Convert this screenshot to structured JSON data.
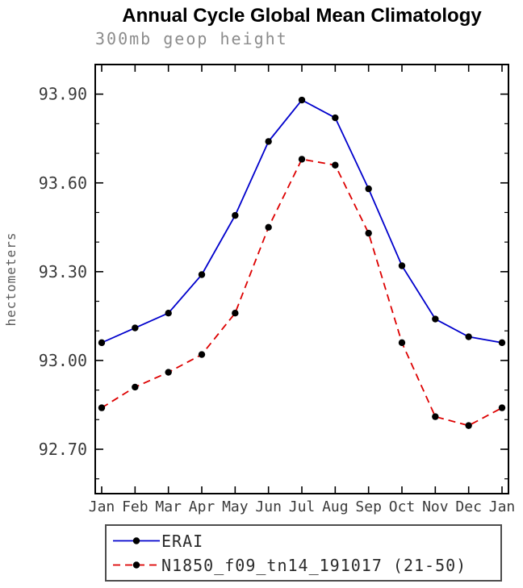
{
  "chart_data": {
    "type": "line",
    "title": "Annual Cycle Global Mean Climatology",
    "subtitle": "300mb geop height",
    "ylabel": "hectometers",
    "xlabel": "",
    "grid": false,
    "legend_position": "bottom",
    "x_tick_labels": [
      "Jan",
      "Feb",
      "Mar",
      "Apr",
      "May",
      "Jun",
      "Jul",
      "Aug",
      "Sep",
      "Oct",
      "Nov",
      "Dec",
      "Jan"
    ],
    "y_ticks": [
      92.7,
      93.0,
      93.3,
      93.6,
      93.9
    ],
    "y_minor_step": 0.1,
    "ylim": [
      92.55,
      94.0
    ],
    "axis_color": "#000000",
    "series": [
      {
        "name": "ERAI",
        "color": "#0000cc",
        "line_style": "solid",
        "marker": "filled-circle",
        "marker_color": "#000000",
        "values": [
          93.06,
          93.11,
          93.16,
          93.29,
          93.49,
          93.74,
          93.88,
          93.82,
          93.58,
          93.32,
          93.14,
          93.08,
          93.06
        ]
      },
      {
        "name": "N1850_f09_tn14_191017 (21-50)",
        "color": "#dd0000",
        "line_style": "dashed",
        "marker": "filled-circle",
        "marker_color": "#000000",
        "values": [
          92.84,
          92.91,
          92.96,
          93.02,
          93.16,
          93.45,
          93.68,
          93.66,
          93.43,
          93.06,
          92.81,
          92.78,
          92.84
        ]
      }
    ]
  }
}
